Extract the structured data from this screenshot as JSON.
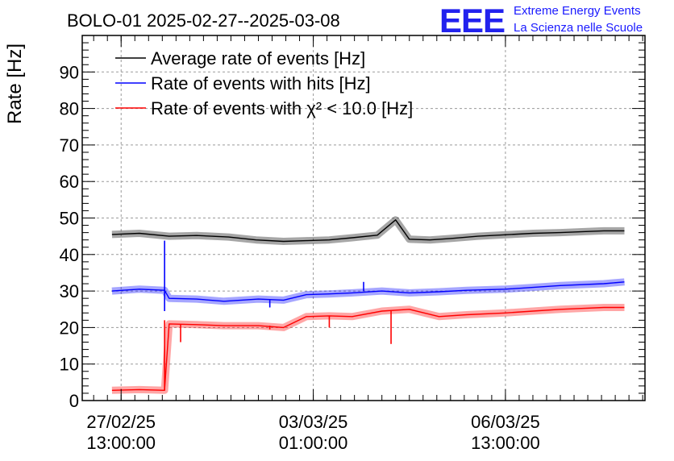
{
  "chart_data": {
    "type": "line",
    "title": "BOLO-01 2025-02-27--2025-03-08",
    "ylabel": "Rate [Hz]",
    "xlabel": "",
    "ylim": [
      0,
      100
    ],
    "yticks": [
      0,
      10,
      20,
      30,
      40,
      50,
      60,
      70,
      80,
      90
    ],
    "grid": true,
    "legend_position": "top-left",
    "x_range": [
      "2025-02-26 20:00",
      "2025-03-09 02:00"
    ],
    "xticks": [
      {
        "x": "2025-02-27 13:00",
        "date": "27/02/25",
        "time": "13:00:00"
      },
      {
        "x": "2025-03-03 01:00",
        "date": "03/03/25",
        "time": "01:00:00"
      },
      {
        "x": "2025-03-06 13:00",
        "date": "06/03/25",
        "time": "13:00:00"
      }
    ],
    "series": [
      {
        "name": "Average rate of events [Hz]",
        "color": "#000000",
        "x": [
          "2025-02-27 09:00",
          "2025-02-27 21:00",
          "2025-02-28 10:00",
          "2025-02-28 22:00",
          "2025-03-01 12:00",
          "2025-03-02 00:00",
          "2025-03-02 12:00",
          "2025-03-02 22:00",
          "2025-03-03 08:00",
          "2025-03-03 18:00",
          "2025-03-04 05:00",
          "2025-03-04 13:00",
          "2025-03-04 19:00",
          "2025-03-05 04:00",
          "2025-03-05 13:00",
          "2025-03-06 01:00",
          "2025-03-06 13:00",
          "2025-03-07 01:00",
          "2025-03-07 13:00",
          "2025-03-08 08:00",
          "2025-03-08 17:00"
        ],
        "y": [
          45.5,
          45.8,
          45.0,
          45.2,
          44.8,
          44.0,
          43.6,
          43.8,
          44.0,
          44.6,
          45.3,
          49.5,
          44.2,
          44.0,
          44.4,
          45.0,
          45.4,
          45.8,
          46.0,
          46.5,
          46.5
        ]
      },
      {
        "name": "Rate of events with hits [Hz]",
        "color": "#0000ff",
        "x": [
          "2025-02-27 09:00",
          "2025-02-27 21:00",
          "2025-02-28 08:00",
          "2025-02-28 10:00",
          "2025-02-28 22:00",
          "2025-03-01 10:00",
          "2025-03-02 01:00",
          "2025-03-02 12:00",
          "2025-03-02 22:00",
          "2025-03-03 08:00",
          "2025-03-03 18:00",
          "2025-03-04 07:00",
          "2025-03-04 19:00",
          "2025-03-05 08:00",
          "2025-03-05 20:00",
          "2025-03-06 13:00",
          "2025-03-07 01:00",
          "2025-03-07 13:00",
          "2025-03-08 08:00",
          "2025-03-08 17:00"
        ],
        "y": [
          30.0,
          30.5,
          30.2,
          28.0,
          27.8,
          27.2,
          27.8,
          27.5,
          29.0,
          29.2,
          29.5,
          30.0,
          29.5,
          29.8,
          30.2,
          30.5,
          31.0,
          31.5,
          32.0,
          32.5
        ]
      },
      {
        "name": "Rate of events with χ² < 10.0 [Hz]",
        "color": "#ff0000",
        "x": [
          "2025-02-27 09:00",
          "2025-02-27 21:00",
          "2025-02-28 08:00",
          "2025-02-28 10:00",
          "2025-02-28 22:00",
          "2025-03-01 10:00",
          "2025-03-02 01:00",
          "2025-03-02 12:00",
          "2025-03-02 22:00",
          "2025-03-03 08:00",
          "2025-03-03 18:00",
          "2025-03-04 07:00",
          "2025-03-04 19:00",
          "2025-03-05 08:00",
          "2025-03-05 20:00",
          "2025-03-06 13:00",
          "2025-03-07 01:00",
          "2025-03-07 13:00",
          "2025-03-08 08:00",
          "2025-03-08 17:00"
        ],
        "y": [
          2.8,
          3.0,
          2.8,
          21.0,
          20.8,
          20.5,
          20.5,
          20.0,
          23.0,
          23.2,
          23.0,
          24.5,
          25.0,
          23.0,
          23.5,
          24.0,
          24.5,
          25.0,
          25.5,
          25.5
        ]
      }
    ],
    "spikes": [
      {
        "series": 1,
        "x": "2025-02-28 08:00",
        "y_from": 24.5,
        "y_to": 43.8
      },
      {
        "series": 2,
        "x": "2025-02-28 08:00",
        "y_from": 2.8,
        "y_to": 22.0
      },
      {
        "series": 2,
        "x": "2025-02-28 15:00",
        "y_from": 21.0,
        "y_to": 16.0
      },
      {
        "series": 2,
        "x": "2025-03-02 06:00",
        "y_from": 20.5,
        "y_to": 19.5
      },
      {
        "series": 1,
        "x": "2025-03-02 06:00",
        "y_from": 27.5,
        "y_to": 25.5
      },
      {
        "series": 2,
        "x": "2025-03-03 08:00",
        "y_from": 23.2,
        "y_to": 20.0
      },
      {
        "series": 2,
        "x": "2025-03-04 11:00",
        "y_from": 24.5,
        "y_to": 15.5
      },
      {
        "series": 1,
        "x": "2025-03-03 23:00",
        "y_from": 30.0,
        "y_to": 32.5
      }
    ]
  },
  "brand": {
    "mark": "EEE",
    "line1": "Extreme Energy Events",
    "line2": "La Scienza nelle Scuole",
    "color": "#1a1aff"
  }
}
